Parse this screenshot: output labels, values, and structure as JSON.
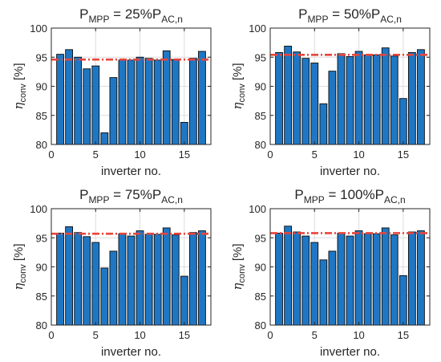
{
  "chart_data": [
    {
      "type": "bar",
      "title_main": "P",
      "title_sub1": "MPP",
      "title_mid": " = 25%P",
      "title_sub2": "AC,n",
      "xlabel": "inverter no.",
      "ylabel_symbol": "η",
      "ylabel_sub": "conv",
      "ylabel_unit": "[%]",
      "x": [
        1,
        2,
        3,
        4,
        5,
        6,
        7,
        8,
        9,
        10,
        11,
        12,
        13,
        14,
        15,
        16,
        17
      ],
      "values": [
        95.5,
        96.3,
        95.0,
        93.0,
        93.5,
        82.0,
        91.5,
        94.5,
        94.5,
        95.0,
        94.8,
        94.5,
        96.1,
        94.6,
        83.8,
        94.8,
        96.0
      ],
      "mean": 94.6,
      "xlim": [
        0,
        18
      ],
      "ylim": [
        80,
        100
      ],
      "xticks": [
        0,
        5,
        10,
        15
      ],
      "yticks": [
        80,
        85,
        90,
        95,
        100
      ],
      "grid": true
    },
    {
      "type": "bar",
      "title_main": "P",
      "title_sub1": "MPP",
      "title_mid": " = 50%P",
      "title_sub2": "AC,n",
      "xlabel": "inverter no.",
      "ylabel_symbol": "η",
      "ylabel_sub": "conv",
      "ylabel_unit": "[%]",
      "x": [
        1,
        2,
        3,
        4,
        5,
        6,
        7,
        8,
        9,
        10,
        11,
        12,
        13,
        14,
        15,
        16,
        17
      ],
      "values": [
        95.8,
        96.9,
        95.9,
        94.8,
        94.0,
        87.0,
        92.6,
        95.6,
        95.1,
        96.0,
        95.4,
        95.4,
        96.6,
        95.2,
        87.9,
        95.8,
        96.3
      ],
      "mean": 95.4,
      "xlim": [
        0,
        18
      ],
      "ylim": [
        80,
        100
      ],
      "xticks": [
        0,
        5,
        10,
        15
      ],
      "yticks": [
        80,
        85,
        90,
        95,
        100
      ],
      "grid": true
    },
    {
      "type": "bar",
      "title_main": "P",
      "title_sub1": "MPP",
      "title_mid": " = 75%P",
      "title_sub2": "AC,n",
      "xlabel": "inverter no.",
      "ylabel_symbol": "η",
      "ylabel_sub": "conv",
      "ylabel_unit": "[%]",
      "x": [
        1,
        2,
        3,
        4,
        5,
        6,
        7,
        8,
        9,
        10,
        11,
        12,
        13,
        14,
        15,
        16,
        17
      ],
      "values": [
        95.8,
        96.9,
        95.9,
        95.2,
        94.2,
        89.8,
        92.7,
        95.7,
        95.3,
        96.2,
        95.6,
        95.6,
        96.7,
        95.5,
        88.4,
        95.9,
        96.2
      ],
      "mean": 95.7,
      "xlim": [
        0,
        18
      ],
      "ylim": [
        80,
        100
      ],
      "xticks": [
        0,
        5,
        10,
        15
      ],
      "yticks": [
        80,
        85,
        90,
        95,
        100
      ],
      "grid": true
    },
    {
      "type": "bar",
      "title_main": "P",
      "title_sub1": "MPP",
      "title_mid": " = 100%P",
      "title_sub2": "AC,n",
      "xlabel": "inverter no.",
      "ylabel_symbol": "η",
      "ylabel_sub": "conv",
      "ylabel_unit": "[%]",
      "x": [
        1,
        2,
        3,
        4,
        5,
        6,
        7,
        8,
        9,
        10,
        11,
        12,
        13,
        14,
        15,
        16,
        17
      ],
      "values": [
        95.8,
        97.0,
        96.0,
        95.3,
        94.2,
        91.2,
        92.7,
        95.8,
        95.3,
        96.2,
        95.7,
        95.7,
        96.7,
        95.5,
        88.5,
        96.0,
        96.2
      ],
      "mean": 95.8,
      "xlim": [
        0,
        18
      ],
      "ylim": [
        80,
        100
      ],
      "xticks": [
        0,
        5,
        10,
        15
      ],
      "yticks": [
        80,
        85,
        90,
        95,
        100
      ],
      "grid": true
    }
  ],
  "colors": {
    "bar_fill": "#1f77c4",
    "bar_edge": "#0a0a0a",
    "mean_line": "#e8453c",
    "grid": "#dcdcdc",
    "axis": "#262626"
  }
}
